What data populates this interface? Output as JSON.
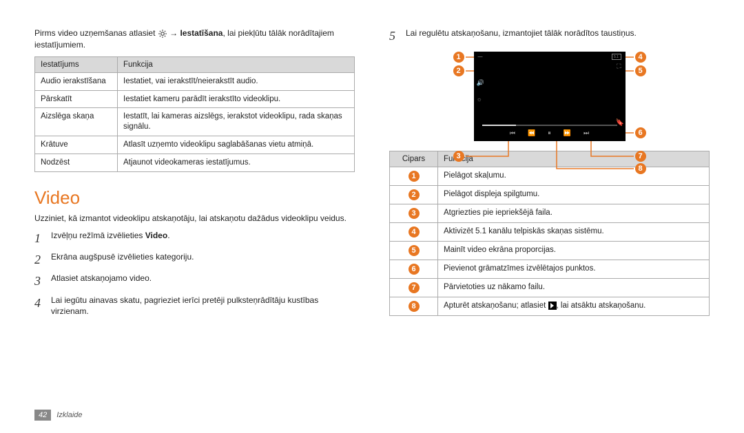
{
  "colors": {
    "accent": "#e87722",
    "table_header_bg": "#d9d9d9",
    "table_border": "#aaaaaa",
    "player_bg": "#000000",
    "footer_bg": "#888888"
  },
  "left": {
    "lead_pre": "Pirms video uzņemšanas atlasiet ",
    "lead_arrow": " → ",
    "lead_bold": "Iestatīšana",
    "lead_post": ", lai piekļūtu tālāk norādītajiem iestatījumiem.",
    "table": {
      "headers": [
        "Iestatījums",
        "Funkcija"
      ],
      "rows": [
        [
          "Audio ierakstīšana",
          "Iestatiet, vai ierakstīt/neierakstīt audio."
        ],
        [
          "Pārskatīt",
          "Iestatiet kameru parādīt ierakstīto videoklipu."
        ],
        [
          "Aizslēga skaņa",
          "Iestatīt, lai kameras aizslēgs, ierakstot videoklipu, rada skaņas signālu."
        ],
        [
          "Krātuve",
          "Atlasīt uzņemto videoklipu saglabāšanas vietu atmiņā."
        ],
        [
          "Nodzēst",
          "Atjaunot videokameras iestatījumus."
        ]
      ]
    },
    "section_title": "Video",
    "section_intro": "Uzziniet, kā izmantot videoklipu atskaņotāju, lai atskaņotu dažādus videoklipu veidus.",
    "steps": [
      {
        "n": "1",
        "pre": "Izvēļņu režīmā izvēlieties ",
        "bold": "Video",
        "post": "."
      },
      {
        "n": "2",
        "pre": "Ekrāna augšpusē izvēlieties kategoriju.",
        "bold": "",
        "post": ""
      },
      {
        "n": "3",
        "pre": "Atlasiet atskaņojamo video.",
        "bold": "",
        "post": ""
      },
      {
        "n": "4",
        "pre": "Lai iegūtu ainavas skatu, pagrieziet ierīci pretēji pulksteņrādītāju kustības virzienam.",
        "bold": "",
        "post": ""
      }
    ]
  },
  "right": {
    "step5": {
      "n": "5",
      "text": "Lai regulētu atskaņošanu, izmantojiet tālāk norādītos taustiņus."
    },
    "player": {
      "background": "#000000",
      "topbar_left_text": "—",
      "surround_label": "5.1",
      "aspect_label": "⛶",
      "volume_icon": "🔊",
      "brightness_icon": "☼",
      "bookmark_icon": "🔖",
      "controls": [
        "⏮",
        "⏪",
        "⏸",
        "⏩",
        "⏭"
      ]
    },
    "callouts": [
      1,
      2,
      3,
      4,
      5,
      6,
      7,
      8
    ],
    "table": {
      "headers": [
        "Cipars",
        "Funkcija"
      ],
      "rows": [
        {
          "num": 1,
          "text": "Pielāgot skaļumu."
        },
        {
          "num": 2,
          "text": "Pielāgot displeja spilgtumu."
        },
        {
          "num": 3,
          "text": "Atgriezties pie iepriekšējā faila."
        },
        {
          "num": 4,
          "text": "Aktivizēt 5.1 kanālu telpiskās skaņas sistēmu."
        },
        {
          "num": 5,
          "text": "Mainīt video ekrāna proporcijas."
        },
        {
          "num": 6,
          "text": "Pievienot grāmatzīmes izvēlētajos punktos."
        },
        {
          "num": 7,
          "text": "Pārvietoties uz nākamo failu."
        },
        {
          "num": 8,
          "text_pre": "Apturēt atskaņošanu; atlasiet ",
          "text_post": ", lai atsāktu atskaņošanu."
        }
      ]
    }
  },
  "footer": {
    "page": "42",
    "section": "Izklaide"
  }
}
